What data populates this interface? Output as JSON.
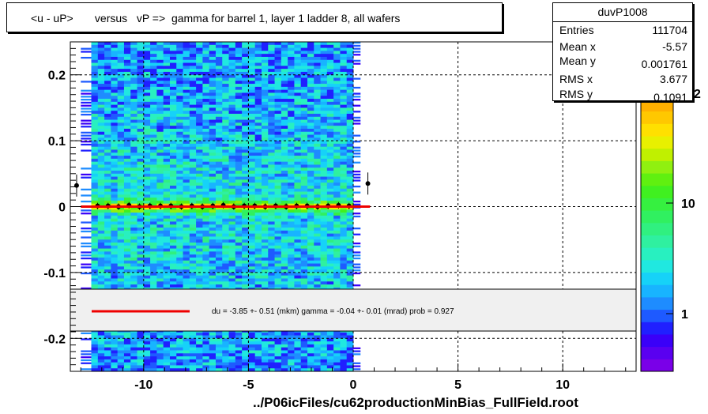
{
  "title": "<u - uP>       versus   vP =>  gamma for barrel 1, layer 1 ladder 8, all wafers",
  "footer": "../P06icFiles/cu62productionMinBias_FullField.root",
  "stats": {
    "name": "duvP1008",
    "rows": [
      {
        "label": "Entries",
        "value": "111704"
      },
      {
        "label": "Mean x",
        "value": "-5.57"
      },
      {
        "label": "Mean y",
        "value": "0.001761"
      },
      {
        "label": "RMS x",
        "value": "3.677"
      },
      {
        "label": "RMS y",
        "value": "0.1091"
      }
    ]
  },
  "legend": {
    "fit_text": "du =   -3.85 +-  0.51 (mkm) gamma =   -0.04 +-  0.01 (mrad) prob = 0.927",
    "fit_color": "#ee0000"
  },
  "colorbar": {
    "tick_labels": [
      "1",
      "10"
    ],
    "exponent_label": "2",
    "palette": [
      "#7a00e8",
      "#5a00f0",
      "#3a00f8",
      "#2020ff",
      "#1e5aff",
      "#1e8cff",
      "#18b4ff",
      "#16d2f8",
      "#20e8e0",
      "#28f0c0",
      "#2ff0a0",
      "#30f080",
      "#30f060",
      "#36f040",
      "#40f020",
      "#60f010",
      "#90f010",
      "#c0f000",
      "#e8f000",
      "#ffe000",
      "#ffc800",
      "#ffb000"
    ]
  },
  "chart_data": {
    "type": "heatmap",
    "title": "<u - uP>       versus   vP =>  gamma for barrel 1, layer 1 ladder 8, all wafers",
    "xlabel": "",
    "ylabel": "",
    "xlim": [
      -13.5,
      13.5
    ],
    "ylim": [
      -0.25,
      0.25
    ],
    "x_ticks": [
      -10,
      -5,
      0,
      5,
      10
    ],
    "y_ticks": [
      -0.2,
      -0.1,
      0,
      0.1,
      0.2
    ],
    "x_tick_labels": [
      "-10",
      "-5",
      "0",
      "5",
      "10"
    ],
    "y_tick_labels": [
      "-0.2",
      "-0.1",
      "0",
      "0.1",
      "0.2"
    ],
    "grid": true,
    "z_scale": "log",
    "occupied_x_range": [
      -12.5,
      0
    ],
    "profile_points": {
      "x": [
        -13.2,
        -12.2,
        -11.7,
        -11.2,
        -10.7,
        -10.2,
        -9.7,
        -9.2,
        -8.7,
        -8.2,
        -7.7,
        -7.2,
        -6.7,
        -6.2,
        -5.7,
        -5.2,
        -4.7,
        -4.2,
        -3.7,
        -3.2,
        -2.7,
        -2.2,
        -1.7,
        -1.2,
        -0.7,
        -0.2,
        0.7
      ],
      "y": [
        0.032,
        0.001,
        0.001,
        0.0,
        0.002,
        0.0,
        0.001,
        0.001,
        0.001,
        0.0,
        0.001,
        0.0,
        0.001,
        0.002,
        0.0,
        0.001,
        0.001,
        0.0,
        0.001,
        0.0,
        0.001,
        0.001,
        0.0,
        0.001,
        0.002,
        0.001,
        0.035
      ]
    },
    "fit_line": {
      "x": [
        -13.0,
        0.8
      ],
      "y": [
        0.0,
        0.0
      ],
      "color": "#ee0000"
    }
  }
}
